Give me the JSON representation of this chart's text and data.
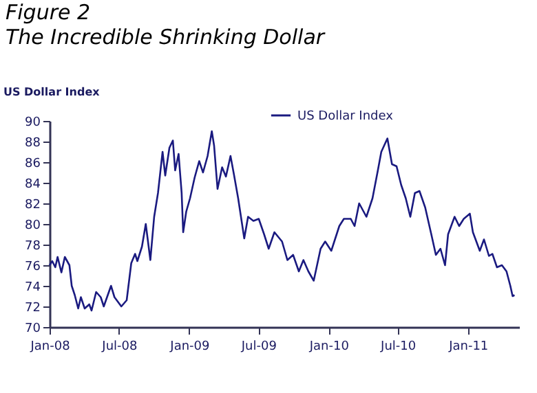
{
  "chart_data": {
    "type": "line",
    "title": "Figure 2",
    "subtitle": "The Incredible Shrinking Dollar",
    "ylabel": "US Dollar Index",
    "x": [
      "2008-01-01",
      "2008-01-08",
      "2008-01-16",
      "2008-01-22",
      "2008-02-01",
      "2008-02-10",
      "2008-02-22",
      "2008-02-28",
      "2008-03-07",
      "2008-03-16",
      "2008-03-23",
      "2008-04-02",
      "2008-04-14",
      "2008-04-20",
      "2008-05-02",
      "2008-05-14",
      "2008-05-22",
      "2008-06-10",
      "2008-06-19",
      "2008-07-07",
      "2008-07-21",
      "2008-08-02",
      "2008-08-12",
      "2008-08-18",
      "2008-08-30",
      "2008-09-09",
      "2008-09-21",
      "2008-10-01",
      "2008-10-11",
      "2008-10-23",
      "2008-10-30",
      "2008-11-10",
      "2008-11-19",
      "2008-11-25",
      "2008-12-04",
      "2008-12-12",
      "2008-12-16",
      "2008-12-24",
      "2009-01-03",
      "2009-01-15",
      "2009-01-27",
      "2009-02-06",
      "2009-02-18",
      "2009-03-01",
      "2009-03-07",
      "2009-03-16",
      "2009-03-28",
      "2009-04-07",
      "2009-04-19",
      "2009-04-28",
      "2009-05-09",
      "2009-05-25",
      "2009-06-04",
      "2009-06-18",
      "2009-07-02",
      "2009-07-16",
      "2009-07-28",
      "2009-08-12",
      "2009-09-01",
      "2009-09-15",
      "2009-09-30",
      "2009-10-15",
      "2009-10-27",
      "2009-11-09",
      "2009-11-23",
      "2009-12-11",
      "2009-12-23",
      "2010-01-08",
      "2010-01-29",
      "2010-02-10",
      "2010-02-28",
      "2010-03-10",
      "2010-03-22",
      "2010-04-10",
      "2010-04-26",
      "2010-05-10",
      "2010-05-19",
      "2010-06-04",
      "2010-06-16",
      "2010-06-28",
      "2010-07-10",
      "2010-07-22",
      "2010-08-03",
      "2010-08-15",
      "2010-08-27",
      "2010-09-11",
      "2010-09-27",
      "2010-10-09",
      "2010-10-21",
      "2010-11-02",
      "2010-11-10",
      "2010-11-27",
      "2010-12-09",
      "2010-12-21",
      "2011-01-06",
      "2011-01-14",
      "2011-02-01",
      "2011-02-12",
      "2011-02-25",
      "2011-03-06",
      "2011-03-18",
      "2011-03-31",
      "2011-04-12",
      "2011-04-22",
      "2011-04-28",
      "2011-05-03"
    ],
    "series": [
      {
        "name": "US Dollar Index",
        "color": "#1a1a80",
        "values": [
          76.0,
          76.4,
          75.8,
          76.8,
          75.3,
          76.8,
          76.0,
          74.0,
          73.1,
          71.8,
          72.9,
          71.8,
          72.2,
          71.6,
          73.4,
          72.9,
          72.0,
          74.0,
          72.9,
          72.0,
          72.6,
          76.2,
          77.1,
          76.4,
          77.8,
          80.0,
          76.5,
          80.7,
          83.0,
          87.0,
          84.7,
          87.4,
          88.1,
          85.2,
          86.8,
          83.0,
          79.2,
          81.2,
          82.5,
          84.5,
          86.1,
          85.0,
          86.6,
          89.0,
          87.6,
          83.4,
          85.5,
          84.6,
          86.6,
          84.8,
          82.5,
          78.6,
          80.7,
          80.3,
          80.5,
          79.0,
          77.6,
          79.2,
          78.3,
          76.5,
          77.0,
          75.4,
          76.5,
          75.4,
          74.5,
          77.6,
          78.3,
          77.4,
          79.8,
          80.5,
          80.5,
          79.8,
          82.0,
          80.7,
          82.5,
          85.2,
          87.0,
          88.3,
          85.8,
          85.6,
          83.8,
          82.5,
          80.7,
          83.0,
          83.2,
          81.6,
          79.0,
          77.0,
          77.6,
          76.0,
          79.0,
          80.7,
          79.8,
          80.5,
          81.0,
          79.2,
          77.4,
          78.5,
          76.9,
          77.1,
          75.8,
          76.0,
          75.4,
          74.0,
          73.0,
          73.1
        ]
      }
    ],
    "xlim": [
      "2008-01-01",
      "2011-05-15"
    ],
    "xticks": [
      {
        "value": "2008-01-01",
        "label": "Jan-08"
      },
      {
        "value": "2008-07-01",
        "label": "Jul-08"
      },
      {
        "value": "2009-01-01",
        "label": "Jan-09"
      },
      {
        "value": "2009-07-01",
        "label": "Jul-09"
      },
      {
        "value": "2010-01-01",
        "label": "Jan-10"
      },
      {
        "value": "2010-07-01",
        "label": "Jul-10"
      },
      {
        "value": "2011-01-01",
        "label": "Jan-11"
      }
    ],
    "ylim": [
      70,
      90
    ],
    "yticks": [
      70,
      72,
      74,
      76,
      78,
      80,
      82,
      84,
      86,
      88,
      90
    ],
    "legend": "top",
    "grid": false
  }
}
